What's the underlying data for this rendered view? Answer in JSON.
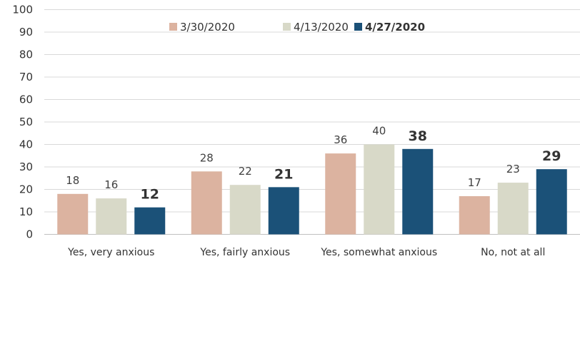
{
  "chart_data": {
    "type": "bar",
    "categories": [
      "Yes, very anxious",
      "Yes, fairly anxious",
      "Yes, somewhat anxious",
      "No, not at all"
    ],
    "series": [
      {
        "name": "3/30/2020",
        "values": [
          18,
          28,
          36,
          17
        ],
        "color": "#dcb3a0",
        "bold": false
      },
      {
        "name": "4/13/2020",
        "values": [
          16,
          22,
          40,
          23
        ],
        "color": "#d8d9c8",
        "bold": false
      },
      {
        "name": "4/27/2020",
        "values": [
          12,
          21,
          38,
          29
        ],
        "color": "#1b5178",
        "bold": true
      }
    ],
    "y_ticks": [
      0,
      10,
      20,
      30,
      40,
      50,
      60,
      70,
      80,
      90,
      100
    ],
    "ylim": [
      0,
      100
    ],
    "grid": true,
    "legend_position": "top-center",
    "title": "",
    "xlabel": "",
    "ylabel": ""
  }
}
